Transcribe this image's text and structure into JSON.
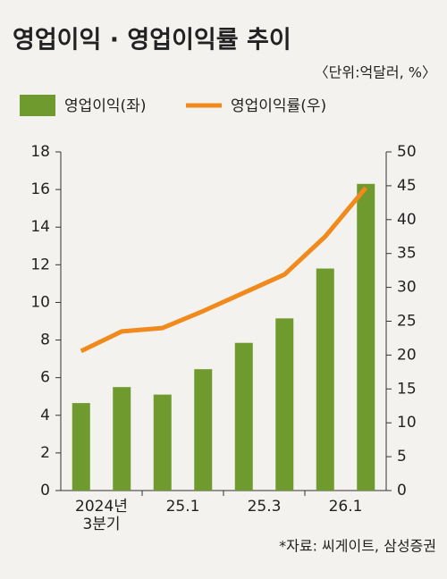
{
  "chart_data": {
    "type": "bar",
    "title": "영업이익 · 영업이익률 추이",
    "subtitle": "〈단위:억달러, %〉",
    "categories": [
      "2024년\n3분기",
      null,
      "25.1",
      null,
      "25.3",
      null,
      "26.1",
      null
    ],
    "series": [
      {
        "name": "영업이익(좌)",
        "color": "#6f9a2e",
        "type": "bar",
        "values": [
          4.65,
          5.5,
          5.1,
          6.45,
          7.85,
          9.15,
          11.8,
          16.3
        ]
      },
      {
        "name": "영업이익률(우)",
        "color": "#f08a1c",
        "type": "line",
        "axis": "y2",
        "values": [
          20.6,
          23.5,
          24.0,
          26.5,
          29.2,
          31.9,
          37.5,
          44.7
        ]
      }
    ],
    "ylim": [
      0,
      18
    ],
    "yticks": [
      0,
      2,
      4,
      6,
      8,
      10,
      12,
      14,
      16,
      18
    ],
    "y2lim": [
      0,
      50
    ],
    "y2ticks": [
      0,
      5,
      10,
      15,
      20,
      25,
      30,
      35,
      40,
      45,
      50
    ],
    "source": "*자료: 씨게이트, 삼성증권"
  }
}
